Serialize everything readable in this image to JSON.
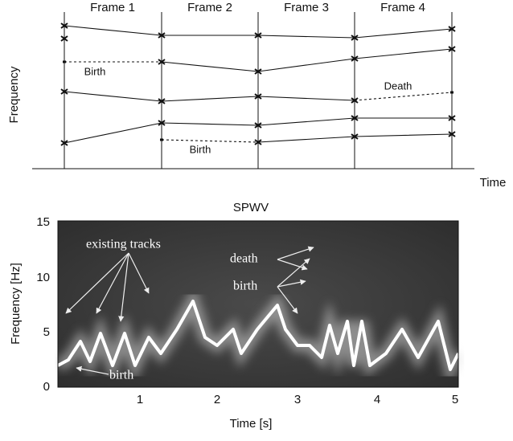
{
  "top": {
    "frame_labels": [
      "Frame 1",
      "Frame 2",
      "Frame 3",
      "Frame 4"
    ],
    "y_label": "Frequency",
    "x_label": "Time",
    "annotations": [
      "Birth",
      "Death",
      "Birth"
    ]
  },
  "bottom": {
    "title": "SPWV",
    "y_label": "Frequency [Hz]",
    "x_label": "Time [s]",
    "y_ticks": [
      0,
      5,
      10,
      15
    ],
    "x_ticks": [
      1,
      2,
      3,
      4,
      5
    ],
    "annotations": [
      "existing tracks",
      "death",
      "birth",
      "birth"
    ]
  }
}
